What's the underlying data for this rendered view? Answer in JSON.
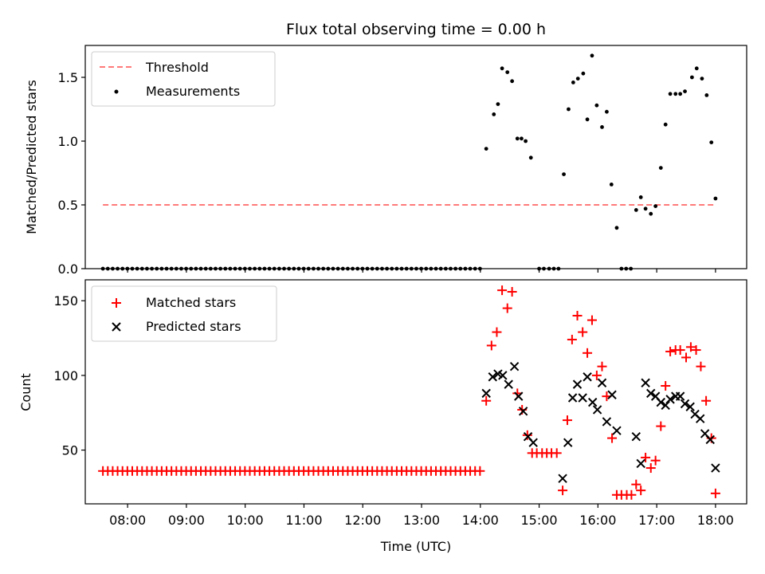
{
  "chart_data": [
    {
      "type": "scatter",
      "title": "Flux total observing time = 0.00 h",
      "ylabel": "Matched/Predicted stars",
      "ylim": [
        0,
        1.75
      ],
      "yticks": [
        "0.0",
        "0.5",
        "1.0",
        "1.5"
      ],
      "xlim": [
        7.28,
        18.53
      ],
      "legend": "top-left",
      "threshold": {
        "name": "Threshold",
        "value": 0.5,
        "x_start": 7.58,
        "x_end": 18.0,
        "color": "#ff7a7a",
        "style": "dashed"
      },
      "series": [
        {
          "name": "Measurements",
          "color": "#000000",
          "marker": "dot",
          "zero_run": {
            "x_start": 7.58,
            "x_end": 14.0,
            "step": 0.0833,
            "y": 0
          },
          "points": [
            [
              14.1,
              0.94
            ],
            [
              14.23,
              1.21
            ],
            [
              14.3,
              1.29
            ],
            [
              14.37,
              1.57
            ],
            [
              14.46,
              1.54
            ],
            [
              14.54,
              1.47
            ],
            [
              14.63,
              1.02
            ],
            [
              14.7,
              1.02
            ],
            [
              14.77,
              1.0
            ],
            [
              14.86,
              0.87
            ],
            [
              15.0,
              0.0
            ],
            [
              15.08,
              0.0
            ],
            [
              15.17,
              0.0
            ],
            [
              15.25,
              0.0
            ],
            [
              15.33,
              0.0
            ],
            [
              15.42,
              0.74
            ],
            [
              15.5,
              1.25
            ],
            [
              15.58,
              1.46
            ],
            [
              15.66,
              1.49
            ],
            [
              15.75,
              1.53
            ],
            [
              15.82,
              1.17
            ],
            [
              15.9,
              1.67
            ],
            [
              15.98,
              1.28
            ],
            [
              16.07,
              1.11
            ],
            [
              16.15,
              1.23
            ],
            [
              16.23,
              0.66
            ],
            [
              16.32,
              0.32
            ],
            [
              16.4,
              0.0
            ],
            [
              16.48,
              0.0
            ],
            [
              16.56,
              0.0
            ],
            [
              16.65,
              0.46
            ],
            [
              16.73,
              0.56
            ],
            [
              16.81,
              0.47
            ],
            [
              16.9,
              0.43
            ],
            [
              16.98,
              0.49
            ],
            [
              17.07,
              0.79
            ],
            [
              17.15,
              1.13
            ],
            [
              17.23,
              1.37
            ],
            [
              17.32,
              1.37
            ],
            [
              17.4,
              1.37
            ],
            [
              17.48,
              1.39
            ],
            [
              17.6,
              1.5
            ],
            [
              17.68,
              1.57
            ],
            [
              17.77,
              1.49
            ],
            [
              17.85,
              1.36
            ],
            [
              17.93,
              0.99
            ],
            [
              18.0,
              0.55
            ]
          ]
        }
      ]
    },
    {
      "type": "scatter",
      "xlabel": "Time (UTC)",
      "ylabel": "Count",
      "ylim": [
        14,
        164
      ],
      "yticks": [
        "50",
        "100",
        "150"
      ],
      "xlim": [
        7.28,
        18.53
      ],
      "xticks": [
        "08:00",
        "09:00",
        "10:00",
        "11:00",
        "12:00",
        "13:00",
        "14:00",
        "15:00",
        "16:00",
        "17:00",
        "18:00"
      ],
      "legend": "top-left",
      "series": [
        {
          "name": "Matched stars",
          "color": "#ff0000",
          "marker": "plus",
          "constant_run": {
            "x_start": 7.58,
            "x_end": 14.0,
            "step": 0.0833,
            "y": 36
          },
          "points": [
            [
              14.1,
              83
            ],
            [
              14.19,
              120
            ],
            [
              14.28,
              129
            ],
            [
              14.37,
              157
            ],
            [
              14.46,
              145
            ],
            [
              14.54,
              156
            ],
            [
              14.63,
              88
            ],
            [
              14.71,
              77
            ],
            [
              14.8,
              60
            ],
            [
              14.88,
              48
            ],
            [
              14.96,
              48
            ],
            [
              15.05,
              48
            ],
            [
              15.13,
              48
            ],
            [
              15.21,
              48
            ],
            [
              15.3,
              48
            ],
            [
              15.4,
              23
            ],
            [
              15.48,
              70
            ],
            [
              15.56,
              124
            ],
            [
              15.65,
              140
            ],
            [
              15.74,
              129
            ],
            [
              15.82,
              115
            ],
            [
              15.9,
              137
            ],
            [
              15.98,
              100
            ],
            [
              16.07,
              106
            ],
            [
              16.15,
              86
            ],
            [
              16.24,
              58
            ],
            [
              16.32,
              20
            ],
            [
              16.4,
              20
            ],
            [
              16.49,
              20
            ],
            [
              16.57,
              20
            ],
            [
              16.65,
              27
            ],
            [
              16.73,
              23
            ],
            [
              16.81,
              45
            ],
            [
              16.9,
              38
            ],
            [
              16.98,
              43
            ],
            [
              17.07,
              66
            ],
            [
              17.15,
              93
            ],
            [
              17.23,
              116
            ],
            [
              17.32,
              117
            ],
            [
              17.4,
              117
            ],
            [
              17.5,
              112
            ],
            [
              17.58,
              119
            ],
            [
              17.67,
              117
            ],
            [
              17.75,
              106
            ],
            [
              17.84,
              83
            ],
            [
              17.93,
              58
            ],
            [
              18.0,
              21
            ]
          ]
        },
        {
          "name": "Predicted stars",
          "color": "#000000",
          "marker": "x",
          "points": [
            [
              14.1,
              88
            ],
            [
              14.21,
              99
            ],
            [
              14.3,
              101
            ],
            [
              14.38,
              100
            ],
            [
              14.48,
              94
            ],
            [
              14.58,
              106
            ],
            [
              14.65,
              86
            ],
            [
              14.73,
              76
            ],
            [
              14.81,
              59
            ],
            [
              14.9,
              55
            ],
            [
              15.4,
              31
            ],
            [
              15.49,
              55
            ],
            [
              15.57,
              85
            ],
            [
              15.65,
              94
            ],
            [
              15.74,
              85
            ],
            [
              15.82,
              99
            ],
            [
              15.91,
              82
            ],
            [
              15.99,
              77
            ],
            [
              16.07,
              95
            ],
            [
              16.15,
              69
            ],
            [
              16.24,
              87
            ],
            [
              16.32,
              63
            ],
            [
              16.65,
              59
            ],
            [
              16.73,
              41
            ],
            [
              16.81,
              95
            ],
            [
              16.9,
              88
            ],
            [
              16.98,
              86
            ],
            [
              17.07,
              82
            ],
            [
              17.15,
              80
            ],
            [
              17.23,
              84
            ],
            [
              17.32,
              86
            ],
            [
              17.4,
              86
            ],
            [
              17.48,
              81
            ],
            [
              17.57,
              79
            ],
            [
              17.65,
              74
            ],
            [
              17.74,
              71
            ],
            [
              17.82,
              61
            ],
            [
              17.91,
              57
            ],
            [
              18.0,
              38
            ]
          ]
        }
      ]
    }
  ]
}
